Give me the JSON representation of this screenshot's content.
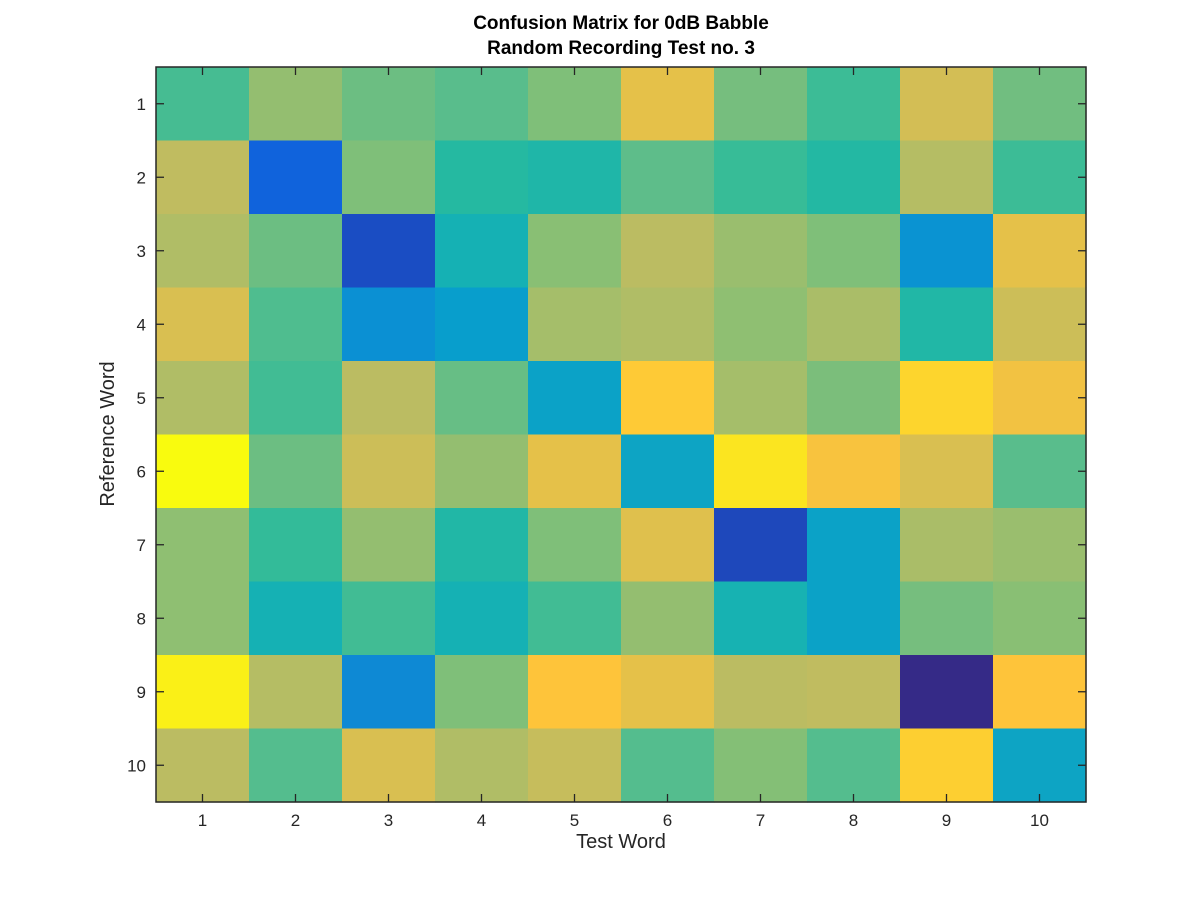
{
  "chart_data": {
    "type": "heatmap",
    "title": [
      "Confusion Matrix for 0dB Babble",
      "Random Recording Test no. 3"
    ],
    "xlabel": "Test Word",
    "ylabel": "Reference Word",
    "x_ticks": [
      "1",
      "2",
      "3",
      "4",
      "5",
      "6",
      "7",
      "8",
      "9",
      "10"
    ],
    "y_ticks": [
      "1",
      "2",
      "3",
      "4",
      "5",
      "6",
      "7",
      "8",
      "9",
      "10"
    ],
    "colormap": "parula",
    "clim": [
      0,
      1
    ],
    "grid": false,
    "colorbar": false,
    "values": [
      [
        0.56,
        0.72,
        0.64,
        0.6,
        0.68,
        0.86,
        0.66,
        0.54,
        0.83,
        0.65
      ],
      [
        0.8,
        0.12,
        0.68,
        0.48,
        0.45,
        0.61,
        0.53,
        0.47,
        0.78,
        0.54
      ],
      [
        0.77,
        0.64,
        0.07,
        0.4,
        0.7,
        0.79,
        0.73,
        0.68,
        0.27,
        0.86
      ],
      [
        0.84,
        0.58,
        0.26,
        0.31,
        0.75,
        0.77,
        0.71,
        0.76,
        0.46,
        0.82
      ],
      [
        0.77,
        0.55,
        0.79,
        0.63,
        0.33,
        0.91,
        0.75,
        0.67,
        0.93,
        0.88
      ],
      [
        1.0,
        0.64,
        0.82,
        0.72,
        0.86,
        0.34,
        0.96,
        0.89,
        0.84,
        0.6
      ],
      [
        0.71,
        0.52,
        0.72,
        0.46,
        0.68,
        0.85,
        0.06,
        0.33,
        0.76,
        0.73
      ],
      [
        0.71,
        0.4,
        0.55,
        0.4,
        0.55,
        0.72,
        0.41,
        0.33,
        0.66,
        0.7
      ],
      [
        0.98,
        0.78,
        0.24,
        0.68,
        0.9,
        0.86,
        0.79,
        0.8,
        0.0,
        0.9
      ],
      [
        0.79,
        0.59,
        0.84,
        0.77,
        0.81,
        0.59,
        0.69,
        0.59,
        0.92,
        0.34
      ]
    ]
  }
}
